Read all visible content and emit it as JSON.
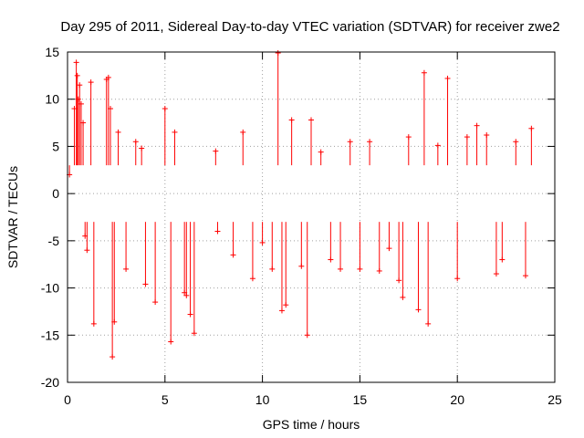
{
  "chart_data": {
    "type": "scatter",
    "title": "Day 295 of 2011, Sidereal Day-to-day VTEC variation (SDTVAR) for receiver zwe2",
    "xlabel": "GPS time / hours",
    "ylabel": "SDTVAR / TECUs",
    "xlim": [
      0,
      25
    ],
    "ylim": [
      -20,
      15
    ],
    "xticks": [
      0,
      5,
      10,
      15,
      20,
      25
    ],
    "yticks": [
      -20,
      -15,
      -10,
      -5,
      0,
      5,
      10,
      15
    ],
    "grid": true,
    "series": [
      {
        "name": "SDTVAR",
        "color": "#ff0000",
        "marker": "plus",
        "x": [
          0.1,
          0.35,
          0.45,
          0.5,
          0.55,
          0.62,
          0.7,
          0.8,
          0.9,
          1.0,
          1.2,
          1.35,
          2.0,
          2.1,
          2.2,
          2.3,
          2.4,
          2.6,
          3.0,
          3.5,
          3.8,
          4.0,
          4.5,
          5.0,
          5.3,
          5.5,
          6.0,
          6.1,
          6.3,
          6.5,
          7.6,
          7.7,
          8.5,
          9.0,
          9.5,
          10.0,
          10.5,
          10.8,
          11.0,
          11.2,
          11.5,
          12.0,
          12.3,
          12.5,
          13.0,
          13.5,
          14.0,
          14.5,
          15.0,
          15.5,
          16.0,
          16.5,
          17.0,
          17.2,
          17.5,
          18.0,
          18.3,
          18.5,
          19.0,
          19.5,
          20.0,
          20.5,
          21.0,
          21.5,
          22.0,
          22.3,
          23.0,
          23.5,
          23.8
        ],
        "y": [
          2.0,
          9.0,
          13.9,
          12.5,
          10.0,
          11.5,
          9.5,
          7.5,
          -4.5,
          -6.0,
          11.8,
          -13.8,
          12.1,
          12.3,
          9.0,
          -17.3,
          -13.6,
          6.5,
          -8.0,
          5.5,
          4.8,
          -9.6,
          -11.5,
          9.0,
          -15.7,
          6.5,
          -10.5,
          -10.8,
          -12.8,
          -14.8,
          4.5,
          -4.0,
          -6.5,
          6.5,
          -9.0,
          -5.2,
          -8.0,
          14.9,
          -12.4,
          -11.8,
          7.8,
          -7.7,
          -15.0,
          7.8,
          4.4,
          -7.0,
          -8.0,
          5.5,
          -8.0,
          5.5,
          -8.2,
          -5.8,
          -9.2,
          -11.0,
          6.0,
          -12.3,
          12.8,
          -13.8,
          5.1,
          12.2,
          -9.0,
          6.0,
          7.2,
          6.2,
          -8.5,
          -7.0,
          5.5,
          -8.7,
          6.9
        ]
      }
    ]
  }
}
